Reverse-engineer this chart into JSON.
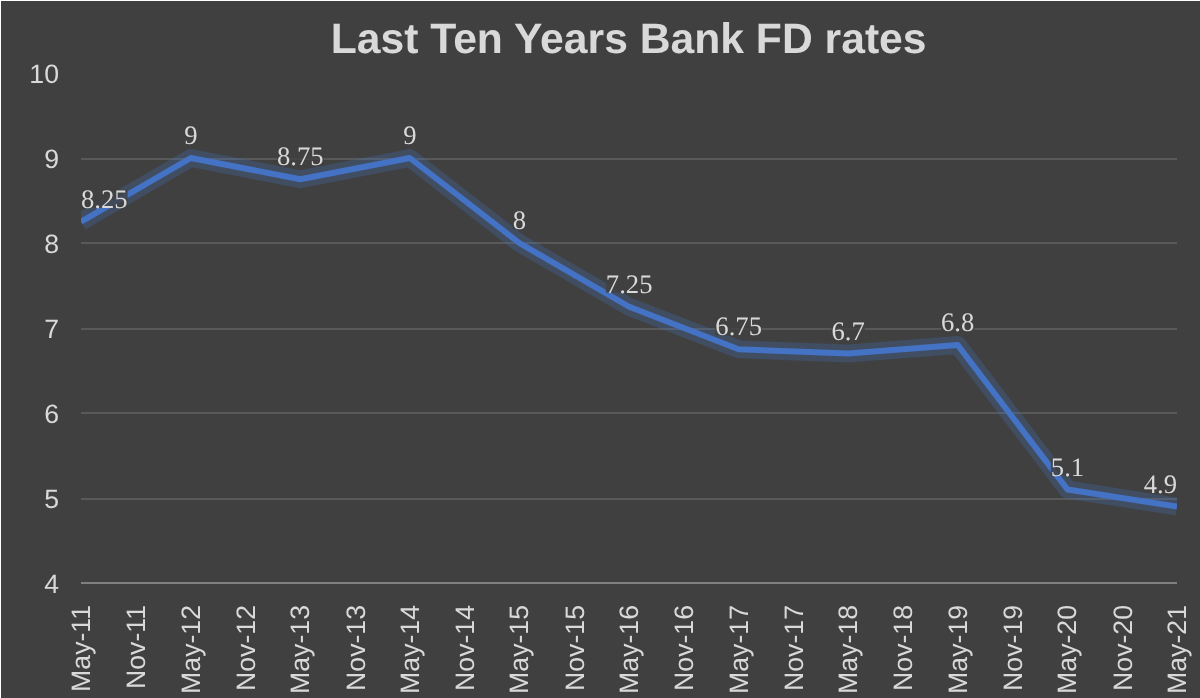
{
  "chart_data": {
    "type": "line",
    "title": "Last Ten Years Bank FD rates",
    "x": [
      "2011-05",
      "2012-05",
      "2013-05",
      "2014-05",
      "2015-05",
      "2016-05",
      "2017-05",
      "2018-05",
      "2019-05",
      "2020-05",
      "2021-05"
    ],
    "series": [
      {
        "color": "#4472c4",
        "values": [
          8.25,
          9,
          8.75,
          9,
          8,
          7.25,
          6.75,
          6.7,
          6.8,
          5.1,
          4.9
        ]
      }
    ],
    "data_labels": true,
    "xlim": [
      "2011-05",
      "2021-05"
    ],
    "xticks": [
      {
        "value": "2011-05",
        "label": "May-11"
      },
      {
        "value": "2011-11",
        "label": "Nov-11"
      },
      {
        "value": "2012-05",
        "label": "May-12"
      },
      {
        "value": "2012-11",
        "label": "Nov-12"
      },
      {
        "value": "2013-05",
        "label": "May-13"
      },
      {
        "value": "2013-11",
        "label": "Nov-13"
      },
      {
        "value": "2014-05",
        "label": "May-14"
      },
      {
        "value": "2014-11",
        "label": "Nov-14"
      },
      {
        "value": "2015-05",
        "label": "May-15"
      },
      {
        "value": "2015-11",
        "label": "Nov-15"
      },
      {
        "value": "2016-05",
        "label": "May-16"
      },
      {
        "value": "2016-11",
        "label": "Nov-16"
      },
      {
        "value": "2017-05",
        "label": "May-17"
      },
      {
        "value": "2017-11",
        "label": "Nov-17"
      },
      {
        "value": "2018-05",
        "label": "May-18"
      },
      {
        "value": "2018-11",
        "label": "Nov-18"
      },
      {
        "value": "2019-05",
        "label": "May-19"
      },
      {
        "value": "2019-11",
        "label": "Nov-19"
      },
      {
        "value": "2020-05",
        "label": "May-20"
      },
      {
        "value": "2020-11",
        "label": "Nov-20"
      },
      {
        "value": "2021-05",
        "label": "May-21"
      }
    ],
    "ylim": [
      4,
      10
    ],
    "yticks": [
      4,
      5,
      6,
      7,
      8,
      9,
      10
    ],
    "grid": "y",
    "marker": "none",
    "line_style": "solid"
  }
}
